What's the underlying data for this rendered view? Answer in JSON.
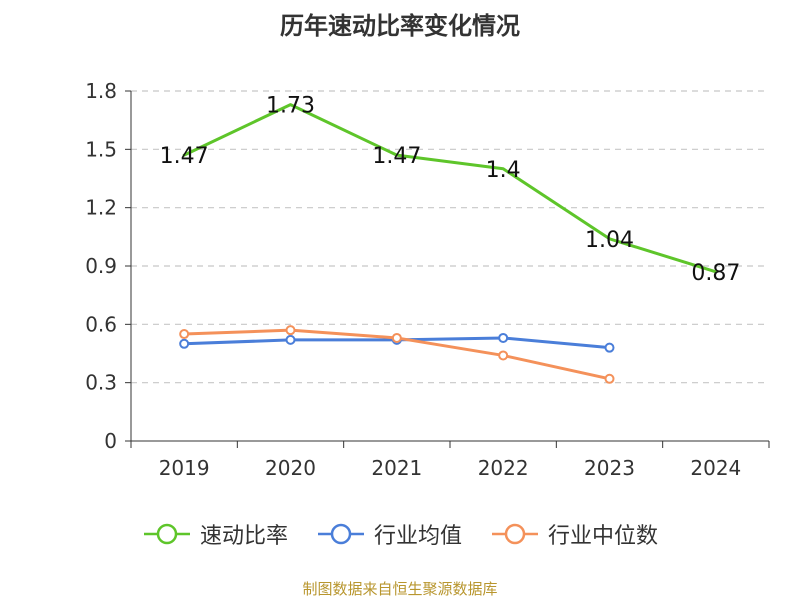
{
  "chart_data": {
    "type": "line",
    "title": "历年速动比率变化情况",
    "categories": [
      "2019",
      "2020",
      "2021",
      "2022",
      "2023",
      "2024"
    ],
    "ylim": [
      0,
      1.8
    ],
    "yticks": [
      "0",
      "0.3",
      "0.6",
      "0.9",
      "1.2",
      "1.5",
      "1.8"
    ],
    "grid": true,
    "legend_position": "bottom",
    "series": [
      {
        "name": "速动比率",
        "color": "#5ec52a",
        "values": [
          1.47,
          1.73,
          1.47,
          1.4,
          1.04,
          0.87
        ],
        "labels": [
          "1.47",
          "1.73",
          "1.47",
          "1.4",
          "1.04",
          "0.87"
        ],
        "show_labels": true
      },
      {
        "name": "行业均值",
        "color": "#4a7ed9",
        "values": [
          0.5,
          0.52,
          0.52,
          0.53,
          0.48,
          null
        ],
        "show_labels": false
      },
      {
        "name": "行业中位数",
        "color": "#f4915a",
        "values": [
          0.55,
          0.57,
          0.53,
          0.44,
          0.32,
          null
        ],
        "show_labels": false
      }
    ]
  },
  "source": "制图数据来自恒生聚源数据库"
}
